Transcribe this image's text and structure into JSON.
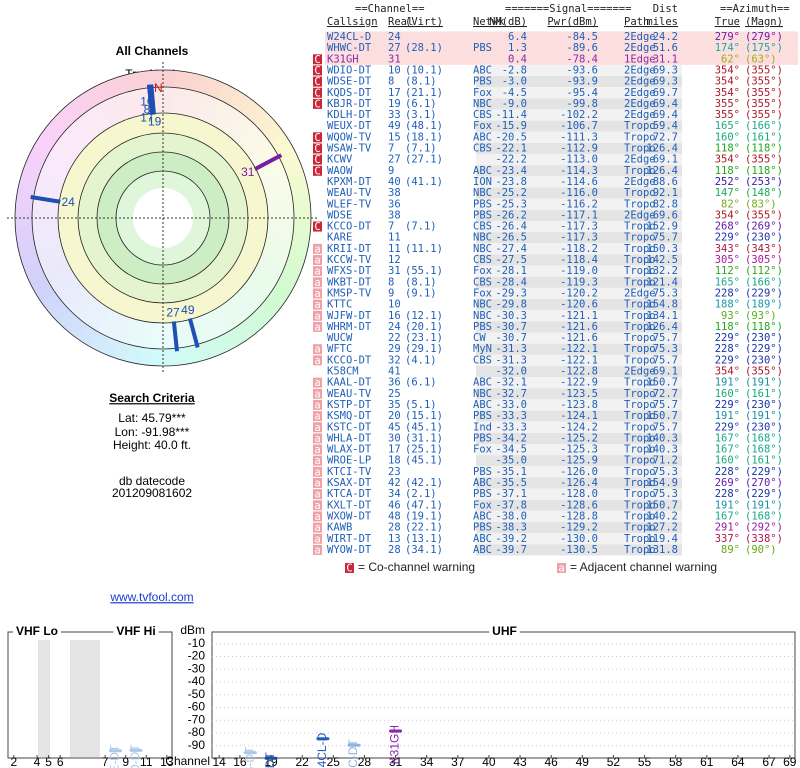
{
  "left_panel": {
    "title": "All Channels",
    "compass_label": "TrueNorth",
    "north": "N",
    "stations": [
      {
        "label": "24",
        "azimuth": 279,
        "color": "#1f4fb0"
      },
      {
        "label": "27",
        "azimuth": 174,
        "color": "#1f4fb0"
      },
      {
        "label": "31",
        "azimuth": 62,
        "color": "#7a1fa0"
      },
      {
        "label": "19",
        "azimuth": 355,
        "color": "#1f4fb0"
      },
      {
        "label": "17",
        "azimuth": 354,
        "color": "#1f4fb0"
      },
      {
        "label": "8",
        "azimuth": 354,
        "color": "#1f4fb0"
      },
      {
        "label": "10",
        "azimuth": 354,
        "color": "#1f4fb0"
      },
      {
        "label": "49",
        "azimuth": 165,
        "color": "#1f4fb0"
      }
    ],
    "search_title": "Search Criteria",
    "lat": "Lat: 45.79***",
    "lon": "Lon: -91.98***",
    "height": "Height: 40.0 ft.",
    "datecode_label": "db datecode",
    "datecode": "201209081602",
    "link": "www.tvfool.com"
  },
  "table": {
    "group_headers": [
      "==Channel==",
      "=======Signal=======",
      "Dist",
      "==Azimuth=="
    ],
    "headers": [
      "Callsign",
      "Real",
      "(Virt)",
      "Netwk",
      "NM(dB)",
      "Pwr(dBm)",
      "Path",
      "miles",
      "True",
      "(Magn)"
    ],
    "rows": [
      {
        "cells": [
          null,
          "W24CL-D",
          "24",
          null,
          null,
          "6.4",
          "-84.5",
          "2Edge",
          "24.2",
          "279°",
          "(279°)"
        ]
      },
      {
        "cells": [
          null,
          "WHWC-DT",
          "27",
          "(28.1)",
          "PBS",
          "1.3",
          "-89.6",
          "2Edge",
          "51.6",
          "174°",
          "(175°)"
        ]
      },
      {
        "cells": [
          "C",
          "K31GH",
          "31",
          null,
          null,
          "0.4",
          "-78.4",
          "1Edge",
          "31.1",
          "62°",
          "(63°)"
        ],
        "color": "#8a2aa8"
      },
      {
        "cells": [
          "C",
          "WDIO-DT",
          "10",
          "(10.1)",
          "ABC",
          "-2.8",
          "-93.6",
          "2Edge",
          "69.3",
          "354°",
          "(355°)"
        ]
      },
      {
        "cells": [
          "C",
          "WDSE-DT",
          "8",
          "(8.1)",
          "PBS",
          "-3.0",
          "-93.9",
          "2Edge",
          "69.3",
          "354°",
          "(355°)"
        ]
      },
      {
        "cells": [
          "C",
          "KQDS-DT",
          "17",
          "(21.1)",
          "Fox",
          "-4.5",
          "-95.4",
          "2Edge",
          "69.7",
          "354°",
          "(355°)"
        ]
      },
      {
        "cells": [
          "C",
          "KBJR-DT",
          "19",
          "(6.1)",
          "NBC",
          "-9.0",
          "-99.8",
          "2Edge",
          "69.4",
          "355°",
          "(355°)"
        ]
      },
      {
        "cells": [
          null,
          "KDLH-DT",
          "33",
          "(3.1)",
          "CBS",
          "-11.4",
          "-102.2",
          "2Edge",
          "69.4",
          "355°",
          "(355°)"
        ]
      },
      {
        "cells": [
          null,
          "WEUX-DT",
          "49",
          "(48.1)",
          "Fox",
          "-15.9",
          "-106.7",
          "Tropo",
          "59.4",
          "165°",
          "(166°)"
        ]
      },
      {
        "cells": [
          "C",
          "WQOW-TV",
          "15",
          "(18.1)",
          "ABC",
          "-20.5",
          "-111.3",
          "Tropo",
          "72.7",
          "160°",
          "(161°)"
        ]
      },
      {
        "cells": [
          "C",
          "WSAW-TV",
          "7",
          "(7.1)",
          "CBS",
          "-22.1",
          "-112.9",
          "Tropo",
          "126.4",
          "118°",
          "(118°)"
        ]
      },
      {
        "cells": [
          "C",
          "KCWV",
          "27",
          "(27.1)",
          null,
          "-22.2",
          "-113.0",
          "2Edge",
          "69.1",
          "354°",
          "(355°)"
        ]
      },
      {
        "cells": [
          "C",
          "WAOW",
          "9",
          null,
          "ABC",
          "-23.4",
          "-114.3",
          "Tropo",
          "126.4",
          "118°",
          "(118°)"
        ]
      },
      {
        "cells": [
          null,
          "KPXM-DT",
          "40",
          "(41.1)",
          "ION",
          "-23.8",
          "-114.6",
          "2Edge",
          "88.6",
          "252°",
          "(253°)"
        ]
      },
      {
        "cells": [
          null,
          "WEAU-TV",
          "38",
          null,
          "NBC",
          "-25.2",
          "-116.0",
          "Tropo",
          "92.1",
          "147°",
          "(148°)"
        ]
      },
      {
        "cells": [
          null,
          "WLEF-TV",
          "36",
          null,
          "PBS",
          "-25.3",
          "-116.2",
          "Tropo",
          "82.8",
          "82°",
          "(83°)"
        ]
      },
      {
        "cells": [
          null,
          "WDSE",
          "38",
          null,
          "PBS",
          "-26.2",
          "-117.1",
          "2Edge",
          "69.6",
          "354°",
          "(355°)"
        ]
      },
      {
        "cells": [
          "C",
          "KCCO-DT",
          "7",
          "(7.1)",
          "CBS",
          "-26.4",
          "-117.3",
          "Tropo",
          "152.9",
          "268°",
          "(269°)"
        ]
      },
      {
        "cells": [
          null,
          "KARE",
          "11",
          null,
          "NBC",
          "-26.5",
          "-117.3",
          "Tropo",
          "75.7",
          "229°",
          "(230°)"
        ]
      },
      {
        "cells": [
          "a",
          "KRII-DT",
          "11",
          "(11.1)",
          "NBC",
          "-27.4",
          "-118.2",
          "Tropo",
          "150.3",
          "343°",
          "(343°)"
        ]
      },
      {
        "cells": [
          "a",
          "KCCW-TV",
          "12",
          null,
          "CBS",
          "-27.5",
          "-118.4",
          "Tropo",
          "142.5",
          "305°",
          "(305°)"
        ]
      },
      {
        "cells": [
          "a",
          "WFXS-DT",
          "31",
          "(55.1)",
          "Fox",
          "-28.1",
          "-119.0",
          "Tropo",
          "132.2",
          "112°",
          "(112°)"
        ]
      },
      {
        "cells": [
          "a",
          "WKBT-DT",
          "8",
          "(8.1)",
          "CBS",
          "-28.4",
          "-119.3",
          "Tropo",
          "121.4",
          "165°",
          "(166°)"
        ]
      },
      {
        "cells": [
          "a",
          "KMSP-TV",
          "9",
          "(9.1)",
          "Fox",
          "-29.3",
          "-120.2",
          "2Edge",
          "75.3",
          "228°",
          "(229°)"
        ]
      },
      {
        "cells": [
          "a",
          "KTTC",
          "10",
          null,
          "NBC",
          "-29.8",
          "-120.6",
          "Tropo",
          "154.8",
          "188°",
          "(189°)"
        ]
      },
      {
        "cells": [
          "a",
          "WJFW-DT",
          "16",
          "(12.1)",
          "NBC",
          "-30.3",
          "-121.1",
          "Tropo",
          "134.1",
          "93°",
          "(93°)"
        ]
      },
      {
        "cells": [
          "a",
          "WHRM-DT",
          "24",
          "(20.1)",
          "PBS",
          "-30.7",
          "-121.6",
          "Tropo",
          "126.4",
          "118°",
          "(118°)"
        ]
      },
      {
        "cells": [
          null,
          "WUCW",
          "22",
          "(23.1)",
          "CW",
          "-30.7",
          "-121.6",
          "Tropo",
          "75.7",
          "229°",
          "(230°)"
        ]
      },
      {
        "cells": [
          "a",
          "WFTC",
          "29",
          "(29.1)",
          "MyN",
          "-31.3",
          "-122.1",
          "Tropo",
          "75.3",
          "228°",
          "(229°)"
        ]
      },
      {
        "cells": [
          "a",
          "KCCO-DT",
          "32",
          "(4.1)",
          "CBS",
          "-31.3",
          "-122.1",
          "Tropo",
          "75.7",
          "229°",
          "(230°)"
        ]
      },
      {
        "cells": [
          null,
          "K58CM",
          "41",
          null,
          null,
          "-32.0",
          "-122.8",
          "2Edge",
          "69.1",
          "354°",
          "(355°)"
        ]
      },
      {
        "cells": [
          "a",
          "KAAL-DT",
          "36",
          "(6.1)",
          "ABC",
          "-32.1",
          "-122.9",
          "Tropo",
          "150.7",
          "191°",
          "(191°)"
        ]
      },
      {
        "cells": [
          "a",
          "WEAU-TV",
          "25",
          null,
          "NBC",
          "-32.7",
          "-123.5",
          "Tropo",
          "72.7",
          "160°",
          "(161°)"
        ]
      },
      {
        "cells": [
          "a",
          "KSTP-DT",
          "35",
          "(5.1)",
          "ABC",
          "-33.0",
          "-123.8",
          "Tropo",
          "75.7",
          "229°",
          "(230°)"
        ]
      },
      {
        "cells": [
          "a",
          "KSMQ-DT",
          "20",
          "(15.1)",
          "PBS",
          "-33.3",
          "-124.1",
          "Tropo",
          "150.7",
          "191°",
          "(191°)"
        ]
      },
      {
        "cells": [
          "a",
          "KSTC-DT",
          "45",
          "(45.1)",
          "Ind",
          "-33.3",
          "-124.2",
          "Tropo",
          "75.7",
          "229°",
          "(230°)"
        ]
      },
      {
        "cells": [
          "a",
          "WHLA-DT",
          "30",
          "(31.1)",
          "PBS",
          "-34.2",
          "-125.2",
          "Tropo",
          "140.3",
          "167°",
          "(168°)"
        ]
      },
      {
        "cells": [
          "a",
          "WLAX-DT",
          "17",
          "(25.1)",
          "Fox",
          "-34.5",
          "-125.3",
          "Tropo",
          "140.3",
          "167°",
          "(168°)"
        ]
      },
      {
        "cells": [
          "a",
          "WROE-LP",
          "18",
          "(45.1)",
          null,
          "-35.0",
          "-125.9",
          "Tropo",
          "71.2",
          "160°",
          "(161°)"
        ]
      },
      {
        "cells": [
          "a",
          "KTCI-TV",
          "23",
          null,
          "PBS",
          "-35.1",
          "-126.0",
          "Tropo",
          "75.3",
          "228°",
          "(229°)"
        ]
      },
      {
        "cells": [
          "a",
          "KSAX-DT",
          "42",
          "(42.1)",
          "ABC",
          "-35.5",
          "-126.4",
          "Tropo",
          "154.9",
          "269°",
          "(270°)"
        ]
      },
      {
        "cells": [
          "a",
          "KTCA-DT",
          "34",
          "(2.1)",
          "PBS",
          "-37.1",
          "-128.0",
          "Tropo",
          "75.3",
          "228°",
          "(229°)"
        ]
      },
      {
        "cells": [
          "a",
          "KXLT-DT",
          "46",
          "(47.1)",
          "Fox",
          "-37.8",
          "-128.6",
          "Tropo",
          "150.7",
          "191°",
          "(191°)"
        ]
      },
      {
        "cells": [
          "a",
          "WXOW-DT",
          "48",
          "(19.1)",
          "ABC",
          "-38.0",
          "-128.8",
          "Tropo",
          "140.2",
          "167°",
          "(168°)"
        ]
      },
      {
        "cells": [
          "a",
          "KAWB",
          "28",
          "(22.1)",
          "PBS",
          "-38.3",
          "-129.2",
          "Tropo",
          "127.2",
          "291°",
          "(292°)"
        ]
      },
      {
        "cells": [
          "a",
          "WIRT-DT",
          "13",
          "(13.1)",
          "ABC",
          "-39.2",
          "-130.0",
          "Tropo",
          "119.4",
          "337°",
          "(338°)"
        ]
      },
      {
        "cells": [
          "a",
          "WYOW-DT",
          "28",
          "(34.1)",
          "ABC",
          "-39.7",
          "-130.5",
          "Tropo",
          "131.8",
          "89°",
          "(90°)"
        ]
      }
    ],
    "legend": [
      {
        "marker": "C",
        "text": "= Co-channel warning",
        "color": "#c8283a"
      },
      {
        "marker": "a",
        "text": "= Adjacent channel warning",
        "color": "#f0a0a8"
      }
    ]
  },
  "chart_data": {
    "type": "spectrum",
    "ylabel": "dBm",
    "xlabel": "Channel",
    "ylim": [
      -100,
      0
    ],
    "yticks": [
      -10,
      -20,
      -30,
      -40,
      -50,
      -60,
      -70,
      -80,
      -90
    ],
    "sections": [
      {
        "name": "VHF Lo",
        "xlim": [
          1.5,
          6.5
        ],
        "xticks": [
          2,
          4,
          5,
          6
        ]
      },
      {
        "name": "VHF Hi",
        "xlim": [
          6.5,
          13.5
        ],
        "xticks": [
          7,
          9,
          11,
          13
        ]
      },
      {
        "name": "UHF",
        "xlim": [
          13.5,
          69.5
        ],
        "xticks": [
          14,
          16,
          19,
          22,
          25,
          28,
          31,
          34,
          37,
          40,
          43,
          46,
          49,
          52,
          55,
          58,
          61,
          64,
          67,
          69
        ]
      }
    ],
    "points": [
      {
        "name": "WDSE-DT",
        "channel": 8,
        "value": -93.9,
        "color": "#a9c8ea"
      },
      {
        "name": "WDIO-DT",
        "channel": 10,
        "value": -93.6,
        "color": "#a9c8ea"
      },
      {
        "name": "KQDS-DT",
        "channel": 17,
        "value": -95.4,
        "color": "#a9c8ea"
      },
      {
        "name": "KBJR-DT",
        "channel": 19,
        "value": -99.8,
        "color": "#1f4f9a"
      },
      {
        "name": "W24CL-D",
        "channel": 24,
        "value": -84.5,
        "color": "#1f5fc0"
      },
      {
        "name": "WHWC-DT",
        "channel": 27,
        "value": -89.6,
        "color": "#8fb4e4"
      },
      {
        "name": "K31GH",
        "channel": 31,
        "value": -78.4,
        "color": "#8a2aa8"
      }
    ]
  }
}
